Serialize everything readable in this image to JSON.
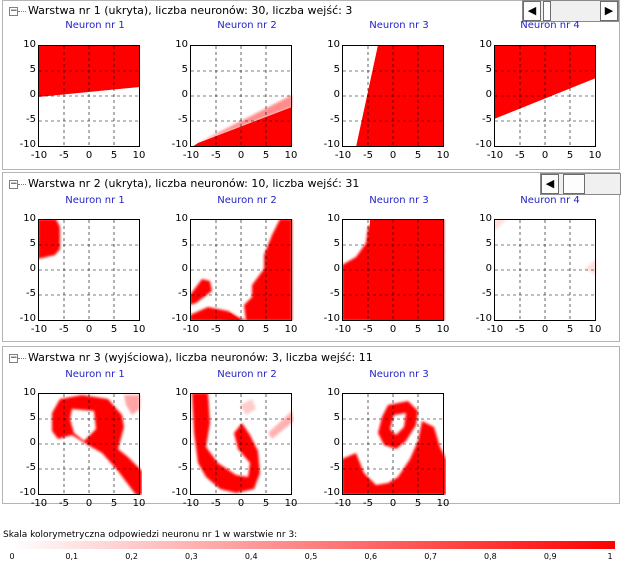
{
  "colors": {
    "accent": "#ff0000",
    "neuron_title": "#2323c8"
  },
  "layers": [
    {
      "title": "Warstwa nr 1 (ukryta), liczba neuronów: 30, liczba wejść: 3",
      "neurons": [
        "Neuron nr 1",
        "Neuron nr 2",
        "Neuron nr 3",
        "Neuron nr 4"
      ]
    },
    {
      "title": "Warstwa nr 2 (ukryta), liczba neuronów: 10, liczba wejść: 31",
      "neurons": [
        "Neuron nr 1",
        "Neuron nr 2",
        "Neuron nr 3",
        "Neuron nr 4"
      ]
    },
    {
      "title": "Warstwa nr 3 (wyjściowa), liczba neuronów: 3, liczba wejść: 11",
      "neurons": [
        "Neuron nr 1",
        "Neuron nr 2",
        "Neuron nr 3"
      ]
    }
  ],
  "axis": {
    "y_ticks": [
      "10",
      "5",
      "0",
      "-5",
      "-10"
    ],
    "x_ticks": [
      "-10",
      "-5",
      "0",
      "5",
      "10"
    ]
  },
  "scrollbar_icons": {
    "left": "◀",
    "right": "▶"
  },
  "scale": {
    "title": "Skala kolorymetryczna odpowiedzi neuronu nr 1 w warstwie nr 3:",
    "ticks": [
      "0",
      "0,1",
      "0,2",
      "0,3",
      "0,4",
      "0,5",
      "0,6",
      "0,7",
      "0,8",
      "0,9",
      "1"
    ]
  }
}
